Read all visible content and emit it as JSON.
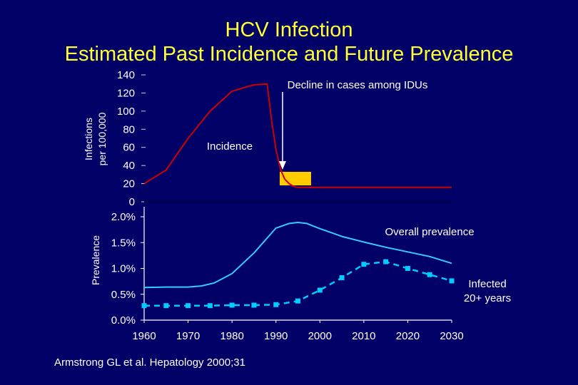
{
  "title_line1": "HCV Infection",
  "title_line2": "Estimated Past Incidence and Future Prevalence",
  "source": "Armstrong GL et al. Hepatology 2000;31",
  "colors": {
    "background": "#000066",
    "title": "#FFFF33",
    "axis_text": "#ffffff",
    "incidence_line": "#CC0000",
    "prevalence_line": "#33CCFF",
    "infected_line": "#00CCFF",
    "marker_box": "#FFCC00"
  },
  "chart_data": [
    {
      "type": "line",
      "name": "incidence",
      "ylabel_line1": "Infections",
      "ylabel_line2": "per 100,000",
      "ylim": [
        0,
        140
      ],
      "yticks": [
        "0",
        "20",
        "40",
        "60",
        "80",
        "100",
        "120",
        "140"
      ],
      "xlim": [
        1960,
        2030
      ],
      "series": [
        {
          "name": "Incidence",
          "label": "Incidence",
          "x": [
            1960,
            1965,
            1970,
            1975,
            1980,
            1985,
            1988,
            1989,
            1990,
            1991,
            1992,
            1993,
            1994,
            1995,
            1996,
            2000,
            2010,
            2020,
            2030
          ],
          "y": [
            20,
            35,
            70,
            100,
            122,
            129,
            130,
            90,
            58,
            36,
            25,
            20,
            17,
            16,
            16,
            16,
            16,
            16,
            16
          ]
        }
      ],
      "annotation": {
        "text": "Decline in cases among IDUs",
        "x_data": 1991.5
      }
    },
    {
      "type": "line",
      "name": "prevalence",
      "ylabel": "Prevalence",
      "ylim": [
        0,
        2.0
      ],
      "yticks": [
        "0.0%",
        "0.5%",
        "1.0%",
        "1.5%",
        "2.0%"
      ],
      "xlim": [
        1960,
        2030
      ],
      "xticks": [
        "1960",
        "1970",
        "1980",
        "1990",
        "2000",
        "2010",
        "2020",
        "2030"
      ],
      "series": [
        {
          "name": "Overall prevalence",
          "label": "Overall prevalence",
          "x": [
            1960,
            1965,
            1970,
            1973,
            1976,
            1980,
            1985,
            1990,
            1993,
            1995,
            1997,
            2000,
            2005,
            2010,
            2015,
            2020,
            2025,
            2030
          ],
          "y": [
            0.63,
            0.64,
            0.64,
            0.66,
            0.72,
            0.9,
            1.3,
            1.78,
            1.87,
            1.89,
            1.87,
            1.77,
            1.62,
            1.51,
            1.41,
            1.32,
            1.23,
            1.1
          ]
        },
        {
          "name": "Infected 20+ years",
          "label_line1": "Infected",
          "label_line2": "20+ years",
          "markers": true,
          "x": [
            1960,
            1965,
            1970,
            1975,
            1980,
            1985,
            1990,
            1995,
            2000,
            2005,
            2010,
            2015,
            2020,
            2025,
            2030
          ],
          "y": [
            0.28,
            0.28,
            0.28,
            0.28,
            0.29,
            0.29,
            0.3,
            0.37,
            0.58,
            0.82,
            1.08,
            1.13,
            1.0,
            0.88,
            0.76
          ]
        }
      ]
    }
  ]
}
